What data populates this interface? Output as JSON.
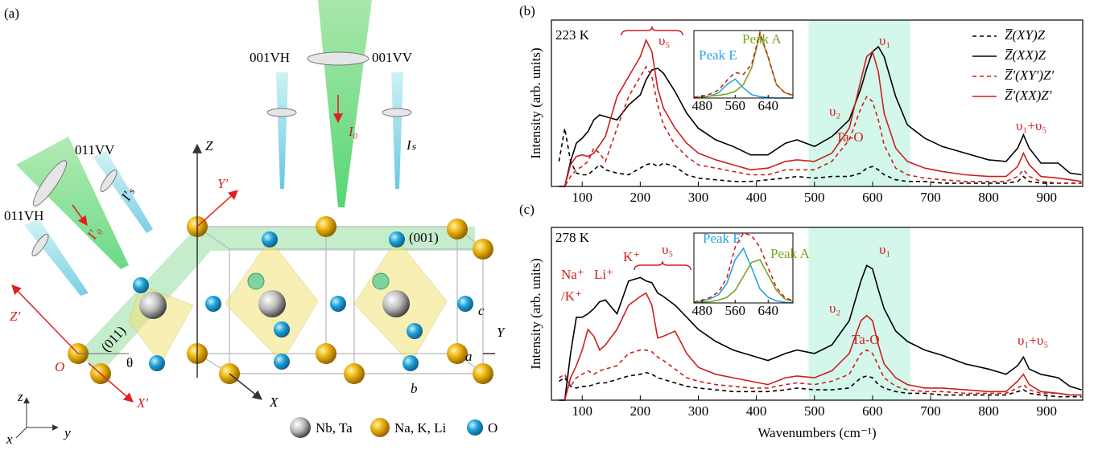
{
  "diagram": {
    "panel_label": "(a)",
    "beam_001_vh": "001VH",
    "beam_001_vv": "001VV",
    "incident_001": "I₀",
    "scattered_001": "Iₛ",
    "beam_011_vv": "011VV",
    "beam_011_vh": "011VH",
    "incident_011": "I′₀",
    "scattered_011": "I′ₛ",
    "axis_z": "Z",
    "axis_y_prime": "Y′",
    "plane_001": "(001)",
    "plane_011": "(011)",
    "axis_z_prime": "Z′",
    "origin": "O",
    "angle": "θ",
    "axis_x_prime": "X′",
    "axis_x": "X",
    "axis_y": "Y",
    "edge_c": "c",
    "edge_a": "a",
    "edge_b": "b",
    "coord_z": "z",
    "coord_y": "y",
    "coord_x": "x",
    "legend": [
      "Nb, Ta",
      "Na, K, Li",
      "O"
    ]
  },
  "chart_data": [
    {
      "type": "line",
      "panel_label": "(b)",
      "y_label": "Intensity (arb. units)",
      "legend": true,
      "shaded_xrange": [
        490,
        665
      ],
      "xlim": [
        47,
        962
      ],
      "ylim": [
        0,
        100
      ],
      "xticks": [
        100,
        200,
        300,
        400,
        500,
        600,
        700,
        800,
        900
      ],
      "annotations": [
        "223 K",
        "υ₅",
        "υ₁",
        "υ₂",
        "Ta-O",
        "υ₁+υ₅"
      ],
      "x": [
        60,
        70,
        80,
        90,
        100,
        110,
        120,
        130,
        140,
        160,
        180,
        200,
        210,
        220,
        230,
        240,
        260,
        280,
        300,
        330,
        360,
        390,
        420,
        450,
        470,
        500,
        530,
        560,
        580,
        590,
        600,
        610,
        620,
        640,
        660,
        690,
        720,
        760,
        800,
        830,
        850,
        860,
        870,
        890,
        920,
        940,
        960
      ],
      "series": [
        {
          "name": "Z̅(XY)Z",
          "color": "#000000",
          "dash": true,
          "values": [
            15,
            35,
            15,
            8,
            7,
            7,
            10,
            13,
            10,
            8,
            7,
            11,
            13,
            14,
            12,
            14,
            12,
            7,
            5,
            4,
            3,
            3,
            4,
            5,
            6,
            5,
            6,
            6,
            8,
            11,
            12,
            10,
            7,
            4,
            3,
            3,
            2,
            2,
            2,
            2,
            3,
            6,
            3,
            2,
            2,
            2,
            2
          ]
        },
        {
          "name": "Z̅(XX)Z",
          "color": "#000000",
          "dash": false,
          "values": [
            0,
            0,
            15,
            26,
            29,
            33,
            40,
            43,
            42,
            40,
            49,
            55,
            64,
            70,
            71,
            68,
            57,
            44,
            35,
            28,
            24,
            19,
            19,
            26,
            28,
            24,
            30,
            40,
            59,
            71,
            81,
            84,
            78,
            54,
            37,
            29,
            24,
            20,
            16,
            15,
            23,
            31,
            23,
            14,
            14,
            8,
            7
          ]
        },
        {
          "name": "Z̅′(XY′)Z′",
          "color": "#cc1f1f",
          "dash": true,
          "values": [
            0,
            0,
            6,
            10,
            12,
            15,
            23,
            20,
            15,
            35,
            54,
            66,
            72,
            66,
            49,
            37,
            25,
            18,
            13,
            11,
            9,
            7,
            7,
            10,
            10,
            10,
            15,
            28,
            47,
            54,
            51,
            40,
            25,
            11,
            7,
            5,
            4,
            3,
            3,
            3,
            6,
            10,
            6,
            3,
            2,
            2,
            2
          ]
        },
        {
          "name": "Z̅′(XX)Z′",
          "color": "#cc1f1f",
          "dash": false,
          "values": [
            0,
            0,
            13,
            18,
            19,
            18,
            20,
            25,
            30,
            54,
            66,
            78,
            88,
            81,
            59,
            47,
            35,
            26,
            20,
            16,
            13,
            10,
            11,
            15,
            16,
            15,
            20,
            35,
            64,
            78,
            81,
            69,
            44,
            23,
            15,
            11,
            9,
            7,
            6,
            6,
            12,
            20,
            13,
            6,
            5,
            4,
            3
          ]
        }
      ],
      "inset": {
        "xlim": [
          460,
          700
        ],
        "ylim": [
          0,
          100
        ],
        "xticks": [
          480,
          560,
          640
        ],
        "labels": [
          "Peak E",
          "Peak A"
        ],
        "x": [
          460,
          480,
          500,
          520,
          540,
          560,
          580,
          600,
          620,
          640,
          660,
          680,
          700
        ],
        "series": [
          {
            "color": "#29a3e0",
            "dash": false,
            "values": [
              0,
              1,
              3,
              8,
              20,
              28,
              15,
              5,
              2,
              1,
              0,
              0,
              0
            ]
          },
          {
            "color": "#7aa521",
            "dash": false,
            "values": [
              1,
              2,
              3,
              4,
              6,
              10,
              20,
              45,
              95,
              60,
              20,
              8,
              4
            ]
          },
          {
            "color": "#cc1f1f",
            "dash": true,
            "values": [
              1,
              3,
              6,
              12,
              26,
              38,
              35,
              50,
              97,
              61,
              20,
              8,
              4
            ]
          }
        ]
      }
    },
    {
      "type": "line",
      "panel_label": "(c)",
      "y_label": "Intensity (arb. units)",
      "x_label": "Wavenumbers (cm⁻¹)",
      "legend": false,
      "shaded_xrange": [
        490,
        665
      ],
      "xlim": [
        47,
        962
      ],
      "ylim": [
        0,
        100
      ],
      "xticks": [
        100,
        200,
        300,
        400,
        500,
        600,
        700,
        800,
        900
      ],
      "annotations": [
        "278 K",
        "υ₅",
        "υ₁",
        "υ₂",
        "Ta-O",
        "υ₁+υ₅",
        "Na⁺",
        "Li⁺",
        "K⁺",
        "/K⁺"
      ],
      "x": [
        60,
        70,
        80,
        90,
        100,
        110,
        120,
        130,
        140,
        160,
        180,
        200,
        210,
        220,
        230,
        240,
        260,
        280,
        300,
        330,
        360,
        390,
        420,
        450,
        470,
        500,
        530,
        560,
        580,
        590,
        600,
        610,
        620,
        640,
        660,
        690,
        720,
        760,
        800,
        830,
        850,
        860,
        870,
        890,
        920,
        940,
        960
      ],
      "series": [
        {
          "color": "#000000",
          "dash": true,
          "values": [
            11,
            13,
            8,
            7,
            8,
            8,
            9,
            10,
            10,
            12,
            14,
            15,
            16,
            15,
            13,
            12,
            10,
            8,
            7,
            6,
            5,
            5,
            5,
            6,
            7,
            6,
            6,
            7,
            13,
            14,
            13,
            9,
            7,
            5,
            4,
            4,
            3,
            3,
            3,
            3,
            5,
            6,
            4,
            3,
            2,
            2,
            2
          ]
        },
        {
          "color": "#000000",
          "dash": false,
          "values": [
            0,
            0,
            27,
            48,
            48,
            50,
            53,
            57,
            58,
            50,
            69,
            71,
            69,
            68,
            62,
            60,
            55,
            48,
            41,
            34,
            29,
            26,
            23,
            27,
            29,
            27,
            32,
            46,
            69,
            78,
            76,
            64,
            53,
            40,
            34,
            29,
            26,
            21,
            18,
            15,
            20,
            25,
            18,
            15,
            13,
            8,
            6
          ]
        },
        {
          "color": "#cc1f1f",
          "dash": true,
          "values": [
            13,
            15,
            8,
            13,
            15,
            17,
            15,
            17,
            18,
            20,
            27,
            29,
            29,
            28,
            25,
            23,
            18,
            13,
            11,
            9,
            8,
            7,
            7,
            9,
            10,
            9,
            11,
            15,
            27,
            29,
            27,
            20,
            13,
            8,
            6,
            5,
            5,
            4,
            4,
            4,
            7,
            9,
            6,
            4,
            4,
            3,
            3
          ]
        },
        {
          "color": "#cc1f1f",
          "dash": false,
          "values": [
            0,
            0,
            13,
            20,
            29,
            41,
            37,
            29,
            32,
            41,
            55,
            60,
            62,
            55,
            36,
            37,
            40,
            27,
            19,
            15,
            13,
            11,
            9,
            13,
            14,
            13,
            17,
            27,
            46,
            49,
            46,
            32,
            21,
            13,
            9,
            7,
            7,
            6,
            5,
            5,
            11,
            15,
            9,
            5,
            4,
            3,
            3
          ]
        }
      ],
      "inset": {
        "xlim": [
          460,
          700
        ],
        "ylim": [
          0,
          100
        ],
        "xticks": [
          480,
          560,
          640
        ],
        "labels": [
          "Peak E",
          "Peak A"
        ],
        "x": [
          460,
          480,
          500,
          520,
          540,
          560,
          580,
          600,
          620,
          640,
          660,
          680,
          700
        ],
        "series": [
          {
            "color": "#29a3e0",
            "dash": false,
            "values": [
              1,
              3,
              6,
              12,
              28,
              62,
              78,
              50,
              20,
              8,
              3,
              1,
              0
            ]
          },
          {
            "color": "#7aa521",
            "dash": false,
            "values": [
              0,
              1,
              2,
              4,
              8,
              18,
              38,
              58,
              62,
              40,
              18,
              6,
              2
            ]
          },
          {
            "color": "#cc1f1f",
            "dash": true,
            "values": [
              1,
              4,
              8,
              16,
              36,
              80,
              100,
              96,
              80,
              50,
              22,
              8,
              3
            ]
          }
        ]
      }
    }
  ]
}
